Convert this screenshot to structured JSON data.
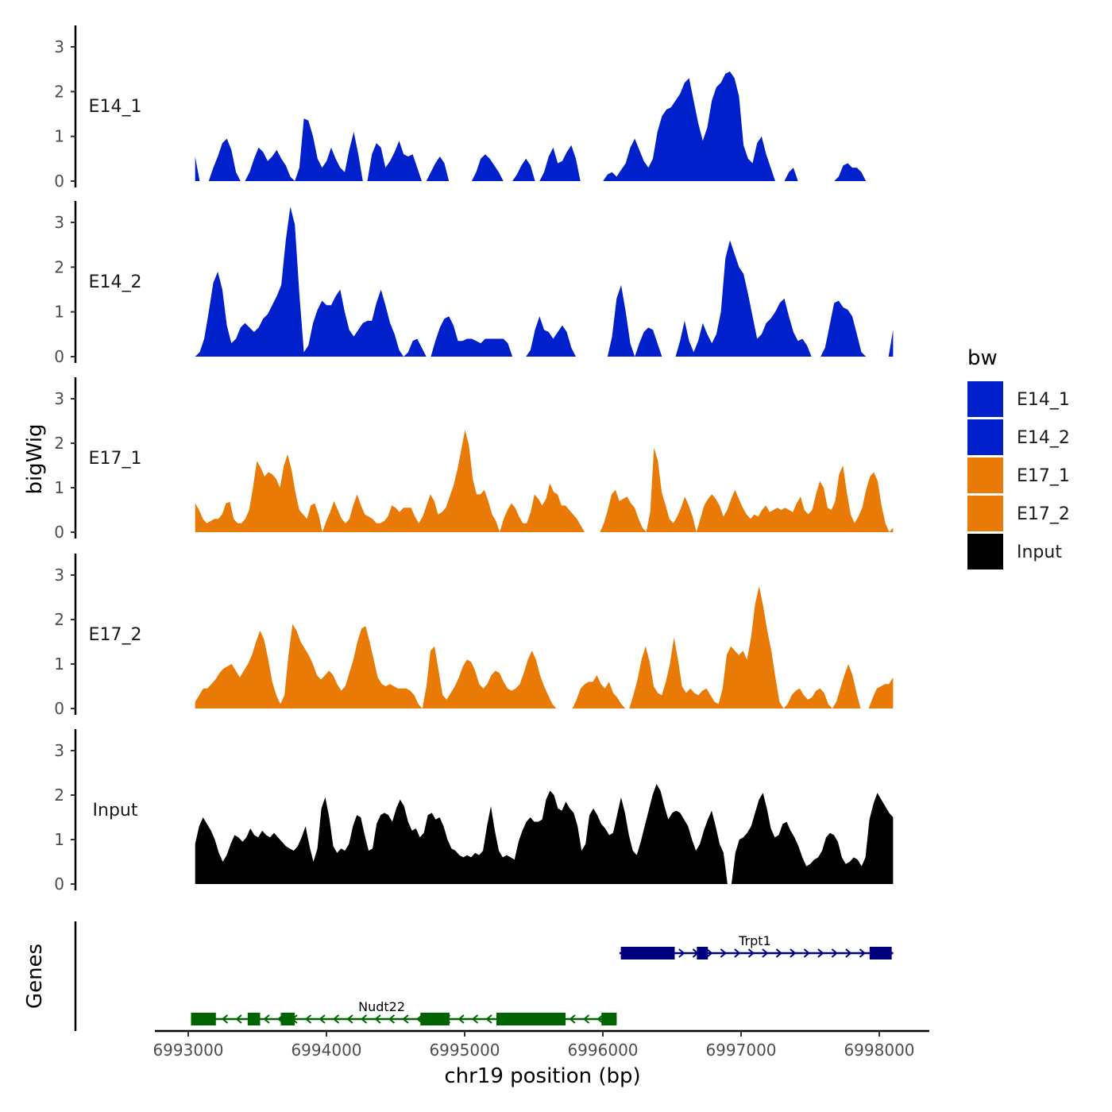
{
  "chart_data": {
    "type": "area",
    "title": "",
    "ylabel": "bigWig",
    "genes_label": "Genes",
    "xlabel": "chr19 position (bp)",
    "xlim": [
      6992800,
      6998400
    ],
    "data_xrange": [
      6993050,
      6998100
    ],
    "ylim": [
      0,
      3.5
    ],
    "yticks": [
      "0",
      "1",
      "2",
      "3"
    ],
    "xticks": [
      {
        "value": 6993000,
        "label": "6993000"
      },
      {
        "value": 6994000,
        "label": "6994000"
      },
      {
        "value": 6995000,
        "label": "6995000"
      },
      {
        "value": 6996000,
        "label": "6996000"
      },
      {
        "value": 6997000,
        "label": "6997000"
      },
      {
        "value": 6998000,
        "label": "6998000"
      }
    ],
    "legend": {
      "title": "bw",
      "position": "right",
      "entries": [
        {
          "label": "E14_1",
          "color": "#0020CC"
        },
        {
          "label": "E14_2",
          "color": "#0020CC"
        },
        {
          "label": "E17_1",
          "color": "#E87A05"
        },
        {
          "label": "E17_2",
          "color": "#E87A05"
        },
        {
          "label": "Input",
          "color": "#000000"
        }
      ]
    },
    "series": [
      {
        "name": "E14_1",
        "color": "#0020CC",
        "values": [
          0.55,
          0,
          0,
          0,
          0.3,
          0.55,
          0.85,
          0.95,
          0.7,
          0.2,
          0,
          0,
          0.2,
          0.5,
          0.75,
          0.65,
          0.45,
          0.55,
          0.7,
          0.5,
          0.35,
          0.1,
          0,
          0.3,
          1.4,
          1.35,
          1.0,
          0.5,
          0.3,
          0.45,
          0.75,
          0.5,
          0.3,
          0.2,
          0.7,
          1.1,
          0.6,
          0,
          0,
          0.6,
          0.85,
          0.75,
          0.3,
          0.45,
          0.65,
          0.9,
          0.6,
          0.55,
          0.6,
          0.3,
          0,
          0,
          0.2,
          0.4,
          0.55,
          0.4,
          0,
          0,
          0,
          0,
          0,
          0,
          0.2,
          0.5,
          0.6,
          0.5,
          0.35,
          0.2,
          0,
          0,
          0,
          0.15,
          0.35,
          0.5,
          0.35,
          0,
          0,
          0.2,
          0.55,
          0.75,
          0.4,
          0.45,
          0.65,
          0.8,
          0.5,
          0,
          0,
          0,
          0,
          0,
          0,
          0.15,
          0.2,
          0.1,
          0.25,
          0.4,
          0.75,
          0.95,
          0.7,
          0.45,
          0.3,
          0.5,
          1.1,
          1.45,
          1.6,
          1.65,
          1.8,
          1.95,
          2.2,
          2.3,
          1.8,
          1.3,
          0.9,
          1.2,
          1.8,
          2.1,
          2.2,
          2.4,
          2.45,
          2.3,
          1.9,
          0.8,
          0.5,
          0.4,
          0.85,
          1.0,
          0.6,
          0.3,
          0,
          0,
          0,
          0.2,
          0.3,
          0,
          0,
          0,
          0,
          0,
          0,
          0,
          0,
          0,
          0.1,
          0.35,
          0.4,
          0.3,
          0.3,
          0.2,
          0,
          0,
          0,
          0,
          0,
          0,
          0
        ]
      },
      {
        "name": "E14_2",
        "color": "#0020CC",
        "values": [
          0,
          0.1,
          0.4,
          1.0,
          1.65,
          1.9,
          1.5,
          0.7,
          0.3,
          0.4,
          0.65,
          0.75,
          0.65,
          0.55,
          0.65,
          0.85,
          0.95,
          1.15,
          1.35,
          1.6,
          2.6,
          3.35,
          2.95,
          1.4,
          0.1,
          0.25,
          0.75,
          1.05,
          1.25,
          1.15,
          1.15,
          1.35,
          1.5,
          1.0,
          0.6,
          0.45,
          0.6,
          0.75,
          0.8,
          0.8,
          1.2,
          1.5,
          1.15,
          0.75,
          0.5,
          0.15,
          0,
          0.1,
          0.35,
          0.4,
          0.2,
          0,
          0,
          0.35,
          0.65,
          0.85,
          0.9,
          0.7,
          0.35,
          0.35,
          0.4,
          0.4,
          0.35,
          0.3,
          0.4,
          0.4,
          0.4,
          0.4,
          0.4,
          0.3,
          0,
          0,
          0,
          0,
          0.15,
          0.6,
          0.9,
          0.6,
          0.55,
          0.4,
          0.55,
          0.7,
          0.55,
          0.2,
          0,
          0,
          0,
          0,
          0,
          0,
          0,
          0,
          0.45,
          1.3,
          1.6,
          1.0,
          0.3,
          0,
          0.3,
          0.55,
          0.65,
          0.6,
          0.3,
          0,
          0,
          0,
          0,
          0.35,
          0.8,
          0.35,
          0.1,
          0.35,
          0.75,
          0.5,
          0.3,
          0.5,
          1.0,
          2.2,
          2.6,
          2.3,
          2.0,
          1.85,
          1.4,
          0.9,
          0.4,
          0.5,
          0.75,
          0.85,
          1.0,
          1.2,
          1.3,
          0.9,
          0.55,
          0.35,
          0.4,
          0.25,
          0,
          0,
          0,
          0.2,
          0.7,
          1.2,
          1.25,
          1.1,
          1.05,
          0.9,
          0.5,
          0.1,
          0,
          0,
          0,
          0,
          0,
          0,
          0.6
        ]
      },
      {
        "name": "E17_1",
        "color": "#E87A05",
        "values": [
          0.65,
          0.5,
          0.3,
          0.2,
          0.25,
          0.3,
          0.3,
          0.4,
          0.65,
          0.68,
          0.3,
          0.2,
          0.2,
          0.3,
          0.5,
          1.0,
          1.6,
          1.45,
          1.25,
          1.35,
          1.3,
          1.2,
          1.0,
          1.5,
          1.75,
          1.4,
          0.9,
          0.5,
          0.4,
          0.3,
          0.6,
          0.65,
          0.4,
          0,
          0.25,
          0.45,
          0.7,
          0.5,
          0.3,
          0.2,
          0.3,
          0.6,
          0.85,
          0.6,
          0.4,
          0.35,
          0.3,
          0.2,
          0.2,
          0.25,
          0.35,
          0.6,
          0.55,
          0.45,
          0.55,
          0.55,
          0.55,
          0.35,
          0.2,
          0.35,
          0.6,
          0.85,
          0.7,
          0.4,
          0.45,
          0.55,
          0.8,
          1.05,
          1.4,
          1.85,
          2.3,
          1.95,
          1.2,
          0.85,
          0.85,
          0.95,
          0.7,
          0.4,
          0.25,
          0,
          0.3,
          0.5,
          0.65,
          0.55,
          0.35,
          0.2,
          0.2,
          0.45,
          0.85,
          0.75,
          0.6,
          0.75,
          1.1,
          0.9,
          0.85,
          0.6,
          0.6,
          0.5,
          0.4,
          0.3,
          0.15,
          0,
          0,
          0,
          0,
          0,
          0.2,
          0.5,
          0.85,
          0.95,
          0.7,
          0.75,
          0.8,
          0.65,
          0.55,
          0.3,
          0.1,
          0,
          0.45,
          1.9,
          1.6,
          0.9,
          0.6,
          0.3,
          0.2,
          0.35,
          0.55,
          0.8,
          0.6,
          0.35,
          0,
          0.3,
          0.6,
          0.75,
          0.85,
          0.75,
          0.6,
          0.35,
          0.5,
          0.75,
          0.95,
          0.75,
          0.55,
          0.4,
          0.3,
          0.4,
          0.35,
          0.5,
          0.6,
          0.45,
          0.5,
          0.55,
          0.5,
          0.55,
          0.5,
          0.45,
          0.65,
          0.8,
          0.5,
          0.4,
          0.5,
          0.85,
          1.15,
          1.0,
          0.55,
          0.5,
          0.7,
          1.3,
          1.5,
          0.9,
          0.4,
          0.2,
          0.35,
          0.55,
          0.95,
          1.25,
          1.35,
          1.15,
          0.6,
          0.2,
          0,
          0.1
        ]
      },
      {
        "name": "E17_2",
        "color": "#E87A05",
        "values": [
          0.15,
          0.3,
          0.45,
          0.45,
          0.55,
          0.65,
          0.8,
          0.9,
          0.95,
          1.0,
          0.85,
          0.7,
          0.85,
          1.0,
          1.2,
          1.5,
          1.75,
          1.55,
          1.1,
          0.6,
          0.3,
          0.1,
          0.3,
          1.2,
          1.9,
          1.75,
          1.5,
          1.35,
          1.2,
          1.0,
          0.75,
          0.65,
          0.75,
          0.85,
          0.75,
          0.55,
          0.4,
          0.5,
          0.8,
          1.1,
          1.5,
          1.8,
          1.85,
          1.5,
          1.1,
          0.7,
          0.55,
          0.5,
          0.55,
          0.5,
          0.45,
          0.45,
          0.45,
          0.4,
          0.3,
          0.1,
          0,
          0.5,
          1.3,
          1.4,
          0.85,
          0.3,
          0.2,
          0.35,
          0.5,
          0.7,
          0.95,
          1.1,
          1.05,
          0.85,
          0.55,
          0.45,
          0.55,
          0.75,
          0.85,
          0.8,
          0.6,
          0.45,
          0.4,
          0.45,
          0.55,
          0.8,
          1.1,
          1.3,
          1.1,
          0.75,
          0.5,
          0.3,
          0.1,
          0,
          0,
          0,
          0,
          0,
          0.2,
          0.45,
          0.55,
          0.6,
          0.6,
          0.75,
          0.55,
          0.45,
          0.6,
          0.35,
          0.25,
          0.1,
          0,
          0,
          0.3,
          0.65,
          1.1,
          1.4,
          1.05,
          0.5,
          0.35,
          0.3,
          0.6,
          1.0,
          1.6,
          1.1,
          0.5,
          0.35,
          0.45,
          0.35,
          0.3,
          0.4,
          0.45,
          0.3,
          0.15,
          0.1,
          0.45,
          1.2,
          1.4,
          1.3,
          1.2,
          1.3,
          1.1,
          1.6,
          2.35,
          2.75,
          2.3,
          1.75,
          1.3,
          0.7,
          0.15,
          0,
          0.1,
          0.3,
          0.4,
          0.45,
          0.3,
          0.2,
          0.25,
          0.4,
          0.45,
          0.35,
          0.1,
          0,
          0.15,
          0.45,
          0.75,
          1.0,
          0.75,
          0.35,
          0,
          0,
          0,
          0.25,
          0.45,
          0.5,
          0.55,
          0.55,
          0.7
        ]
      },
      {
        "name": "Input",
        "color": "#000000",
        "values": [
          0.9,
          1.3,
          1.5,
          1.35,
          1.2,
          1.0,
          0.7,
          0.5,
          0.65,
          0.9,
          1.1,
          1.05,
          0.95,
          1.05,
          1.25,
          1.1,
          1.05,
          1.2,
          1.1,
          1.05,
          1.15,
          1.05,
          0.95,
          0.85,
          0.8,
          0.75,
          0.85,
          1.05,
          1.3,
          0.85,
          0.5,
          0.8,
          1.7,
          1.95,
          1.5,
          0.85,
          0.7,
          0.8,
          0.75,
          0.9,
          1.3,
          1.55,
          1.5,
          1.1,
          0.75,
          0.8,
          1.35,
          1.55,
          1.6,
          1.55,
          1.4,
          1.7,
          1.9,
          1.75,
          1.4,
          1.2,
          1.25,
          1.05,
          1.15,
          1.55,
          1.6,
          1.45,
          1.5,
          1.3,
          1.0,
          0.8,
          0.75,
          0.65,
          0.6,
          0.65,
          0.6,
          0.7,
          0.65,
          0.75,
          1.3,
          1.75,
          1.2,
          0.75,
          0.6,
          0.65,
          0.6,
          0.55,
          0.95,
          1.2,
          1.4,
          1.5,
          1.4,
          1.4,
          1.45,
          1.9,
          2.1,
          2.0,
          1.7,
          1.65,
          1.85,
          1.7,
          1.6,
          1.3,
          0.75,
          0.9,
          1.55,
          1.7,
          1.55,
          1.35,
          1.25,
          1.1,
          1.15,
          1.55,
          1.95,
          1.6,
          1.1,
          0.75,
          0.65,
          0.95,
          1.3,
          1.65,
          2.0,
          2.25,
          2.1,
          1.75,
          1.45,
          1.6,
          1.65,
          1.6,
          1.45,
          1.3,
          1.0,
          0.75,
          0.9,
          1.2,
          1.45,
          1.65,
          1.3,
          0.9,
          0.7,
          0,
          0,
          0.7,
          1.0,
          1.05,
          1.15,
          1.3,
          1.6,
          1.9,
          2.05,
          1.7,
          1.25,
          1.05,
          1.1,
          1.35,
          1.4,
          1.2,
          1.05,
          0.85,
          0.6,
          0.4,
          0.45,
          0.55,
          0.6,
          0.75,
          1.05,
          1.15,
          1.1,
          0.95,
          0.6,
          0.45,
          0.5,
          0.6,
          0.55,
          0.4,
          0.6,
          1.45,
          1.8,
          2.05,
          1.9,
          1.75,
          1.6,
          1.5
        ]
      }
    ],
    "genes": [
      {
        "name": "Trpt1",
        "strand": "+",
        "row": 1,
        "color": "#00007F",
        "start": 6996120,
        "end": 6998100,
        "label_pos": 6997100,
        "exons": [
          [
            6996130,
            6996520
          ],
          [
            6996680,
            6996760
          ],
          [
            6997930,
            6998090
          ]
        ]
      },
      {
        "name": "Nudt22",
        "strand": "-",
        "row": 2,
        "color": "#006400",
        "start": 6993020,
        "end": 6996100,
        "label_pos": 6994400,
        "exons": [
          [
            6993020,
            6993200
          ],
          [
            6993430,
            6993520
          ],
          [
            6993670,
            6993770
          ],
          [
            6994680,
            6994890
          ],
          [
            6995230,
            6995730
          ],
          [
            6995990,
            6996100
          ]
        ]
      }
    ]
  }
}
